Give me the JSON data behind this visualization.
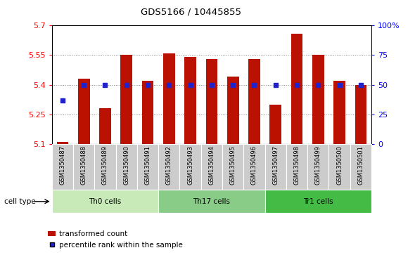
{
  "title": "GDS5166 / 10445855",
  "samples": [
    "GSM1350487",
    "GSM1350488",
    "GSM1350489",
    "GSM1350490",
    "GSM1350491",
    "GSM1350492",
    "GSM1350493",
    "GSM1350494",
    "GSM1350495",
    "GSM1350496",
    "GSM1350497",
    "GSM1350498",
    "GSM1350499",
    "GSM1350500",
    "GSM1350501"
  ],
  "transformed_count": [
    5.11,
    5.43,
    5.28,
    5.55,
    5.42,
    5.56,
    5.54,
    5.53,
    5.44,
    5.53,
    5.3,
    5.66,
    5.55,
    5.42,
    5.4
  ],
  "percentile_rank": [
    37,
    50,
    50,
    50,
    50,
    50,
    50,
    50,
    50,
    50,
    50,
    50,
    50,
    50,
    50
  ],
  "cell_types": [
    {
      "label": "Th0 cells",
      "start": 0,
      "end": 5,
      "color": "#c8eab8"
    },
    {
      "label": "Th17 cells",
      "start": 5,
      "end": 10,
      "color": "#88cc88"
    },
    {
      "label": "Tr1 cells",
      "start": 10,
      "end": 15,
      "color": "#44bb44"
    }
  ],
  "ylim_left": [
    5.1,
    5.7
  ],
  "ylim_right": [
    0,
    100
  ],
  "yticks_left": [
    5.1,
    5.25,
    5.4,
    5.55,
    5.7
  ],
  "ytick_labels_left": [
    "5.1",
    "5.25",
    "5.4",
    "5.55",
    "5.7"
  ],
  "yticks_right": [
    0,
    25,
    50,
    75,
    100
  ],
  "ytick_labels_right": [
    "0",
    "25",
    "50",
    "75",
    "100%"
  ],
  "bar_color": "#bb1100",
  "dot_color": "#2222cc",
  "bg_color": "#ffffff",
  "label_bg": "#cccccc",
  "legend_labels": [
    "transformed count",
    "percentile rank within the sample"
  ],
  "cell_type_label": "cell type"
}
